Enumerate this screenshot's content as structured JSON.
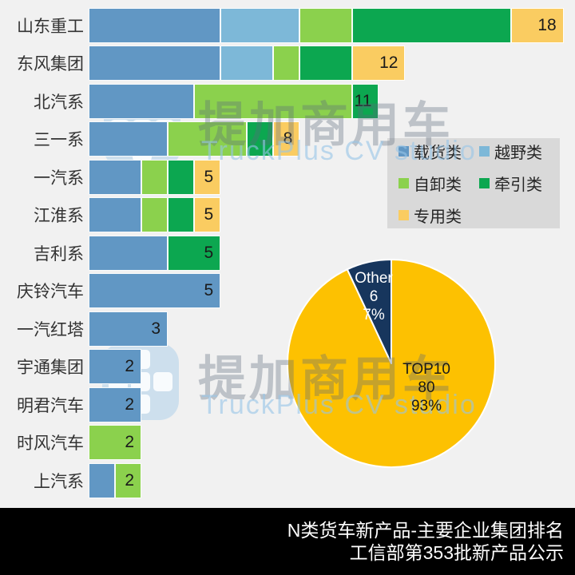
{
  "page": {
    "background": "#f1f1f1"
  },
  "watermark": {
    "brand_cn": "提加商用车",
    "brand_en": "TruckPlus CV studio"
  },
  "footer": {
    "line1": "N类货车新产品-主要企业集团排名",
    "line2": "工信部第353批新产品公示"
  },
  "chart_data": [
    {
      "type": "bar",
      "orientation": "horizontal",
      "stacked": true,
      "grid": false,
      "legend_position": "middle-right",
      "categories": [
        "载货类",
        "越野类",
        "自卸类",
        "牵引类",
        "专用类"
      ],
      "colors": [
        "#6197C4",
        "#7DB8D8",
        "#8BD14D",
        "#0CA750",
        "#FACC61"
      ],
      "companies": [
        "山东重工",
        "东风集团",
        "北汽系",
        "三一系",
        "一汽系",
        "江淮系",
        "吉利系",
        "庆铃汽车",
        "一汽红塔",
        "宇通集团",
        "明君汽车",
        "时风汽车",
        "上汽系"
      ],
      "series": [
        {
          "name": "载货类",
          "values": [
            5,
            5,
            4,
            3,
            2,
            2,
            3,
            5,
            3,
            2,
            2,
            0,
            1
          ]
        },
        {
          "name": "越野类",
          "values": [
            3,
            2,
            0,
            0,
            0,
            0,
            0,
            0,
            0,
            0,
            0,
            0,
            0
          ]
        },
        {
          "name": "自卸类",
          "values": [
            2,
            1,
            6,
            3,
            1,
            1,
            0,
            0,
            0,
            0,
            0,
            2,
            1
          ]
        },
        {
          "name": "牵引类",
          "values": [
            6,
            2,
            1,
            1,
            1,
            1,
            2,
            0,
            0,
            0,
            0,
            0,
            0
          ]
        },
        {
          "name": "专用类",
          "values": [
            2,
            2,
            0,
            1,
            1,
            1,
            0,
            0,
            0,
            0,
            0,
            0,
            0
          ]
        }
      ],
      "totals": [
        18,
        12,
        11,
        8,
        5,
        5,
        5,
        5,
        3,
        2,
        2,
        2,
        2
      ],
      "xlim": [
        0,
        18
      ]
    },
    {
      "type": "pie",
      "slices": [
        {
          "label": "TOP10",
          "value": 80,
          "percent": "93%",
          "color": "#FDC101"
        },
        {
          "label": "Other",
          "value": 6,
          "percent": "7%",
          "color": "#17365D"
        }
      ],
      "border_color": "#ffffff"
    }
  ]
}
